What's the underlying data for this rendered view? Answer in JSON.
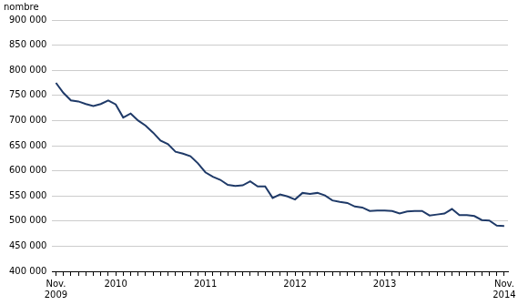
{
  "chart_data": {
    "type": "line",
    "y_label": "nombre",
    "categories": [
      "Nov. 2009",
      null,
      null,
      null,
      null,
      null,
      null,
      null,
      "2010",
      null,
      null,
      null,
      null,
      null,
      null,
      null,
      null,
      null,
      null,
      null,
      "2011",
      null,
      null,
      null,
      null,
      null,
      null,
      null,
      null,
      null,
      null,
      null,
      "2012",
      null,
      null,
      null,
      null,
      null,
      null,
      null,
      null,
      null,
      null,
      null,
      "2013",
      null,
      null,
      null,
      null,
      null,
      null,
      null,
      null,
      null,
      null,
      null,
      null,
      null,
      null,
      null,
      "Nov. 2014"
    ],
    "values": [
      775000,
      755000,
      740000,
      738000,
      733000,
      729000,
      733000,
      740000,
      732000,
      706000,
      714000,
      700000,
      690000,
      676000,
      660000,
      653000,
      638000,
      634000,
      629000,
      615000,
      597000,
      588000,
      582000,
      572000,
      570000,
      571000,
      579000,
      569000,
      569000,
      546000,
      553000,
      549000,
      543000,
      556000,
      554000,
      556000,
      551000,
      541000,
      538000,
      536000,
      529000,
      527000,
      520000,
      521000,
      521000,
      520000,
      515000,
      519000,
      520000,
      520000,
      511000,
      513000,
      515000,
      524000,
      512000,
      512000,
      510000,
      502000,
      501000,
      491000,
      490000
    ],
    "color": "#1f3a68",
    "ylim": [
      400000,
      900000
    ],
    "yticks": [
      {
        "value": 400000,
        "label": "400 000"
      },
      {
        "value": 450000,
        "label": "450 000"
      },
      {
        "value": 500000,
        "label": "500 000"
      },
      {
        "value": 550000,
        "label": "550 000"
      },
      {
        "value": 600000,
        "label": "600 000"
      },
      {
        "value": 650000,
        "label": "650 000"
      },
      {
        "value": 700000,
        "label": "700 000"
      },
      {
        "value": 750000,
        "label": "750 000"
      },
      {
        "value": 800000,
        "label": "800 000"
      },
      {
        "value": 850000,
        "label": "850 000"
      },
      {
        "value": 900000,
        "label": "900 000"
      }
    ],
    "grid": true
  }
}
